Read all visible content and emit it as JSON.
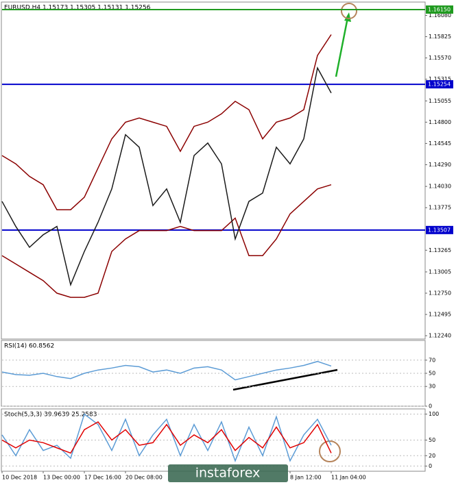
{
  "chart_data": [
    {
      "type": "line",
      "title": "EURUSD,H4  1.15173 1.15305 1.15131 1.15256",
      "ylim": [
        1.122,
        1.1624
      ],
      "yticks": [
        {
          "value": 1.1608,
          "label": "1.16080"
        },
        {
          "value": 1.15825,
          "label": "1.15825"
        },
        {
          "value": 1.1557,
          "label": "1.15570"
        },
        {
          "value": 1.15315,
          "label": "1.15315"
        },
        {
          "value": 1.15055,
          "label": "1.15055"
        },
        {
          "value": 1.148,
          "label": "1.14800"
        },
        {
          "value": 1.14545,
          "label": "1.14545"
        },
        {
          "value": 1.1429,
          "label": "1.14290"
        },
        {
          "value": 1.1403,
          "label": "1.14030"
        },
        {
          "value": 1.13775,
          "label": "1.13775"
        },
        {
          "value": 1.13265,
          "label": "1.13265"
        },
        {
          "value": 1.13005,
          "label": "1.13005"
        },
        {
          "value": 1.1275,
          "label": "1.12750"
        },
        {
          "value": 1.12495,
          "label": "1.12495"
        },
        {
          "value": 1.1224,
          "label": "1.12240"
        }
      ],
      "levels": [
        {
          "value": 1.1615,
          "label": "1.16150",
          "color": "#1f9a1f"
        },
        {
          "value": 1.15254,
          "label": "1.15254",
          "color": "#0000cc"
        },
        {
          "value": 1.13507,
          "label": "1.13507",
          "color": "#0000cc"
        }
      ],
      "series": [
        {
          "color": "#8b0000",
          "values": [
            1.144,
            1.143,
            1.1415,
            1.1405,
            1.1375,
            1.1375,
            1.139,
            1.1425,
            1.146,
            1.148,
            1.1485,
            1.148,
            1.1475,
            1.1445,
            1.1475,
            1.148,
            1.149,
            1.1505,
            1.1495,
            1.146,
            1.148,
            1.1485,
            1.1495,
            1.156,
            1.1585
          ]
        },
        {
          "color": "#8b0000",
          "values": [
            1.132,
            1.131,
            1.13,
            1.129,
            1.1275,
            1.127,
            1.127,
            1.1275,
            1.1325,
            1.134,
            1.135,
            1.135,
            1.135,
            1.1355,
            1.135,
            1.135,
            1.135,
            1.1365,
            1.132,
            1.132,
            1.134,
            1.137,
            1.1385,
            1.14,
            1.1405
          ]
        },
        {
          "color": "#1a1a1a",
          "values": [
            1.1385,
            1.1355,
            1.133,
            1.1345,
            1.1355,
            1.1285,
            1.1325,
            1.136,
            1.14,
            1.1465,
            1.145,
            1.138,
            1.14,
            1.136,
            1.144,
            1.1455,
            1.143,
            1.134,
            1.1385,
            1.1395,
            1.145,
            1.143,
            1.146,
            1.1545,
            1.1515
          ]
        }
      ]
    },
    {
      "type": "line",
      "title": "RSI(14) 60.8562",
      "ylim": [
        0,
        100
      ],
      "yticks": [
        70,
        50,
        30,
        0
      ],
      "series": [
        {
          "color": "#5b9bd5",
          "values": [
            52,
            48,
            47,
            50,
            45,
            42,
            50,
            55,
            58,
            62,
            60,
            52,
            55,
            50,
            58,
            60,
            55,
            40,
            45,
            50,
            55,
            58,
            62,
            68,
            61
          ]
        }
      ]
    },
    {
      "type": "line",
      "title": "Stoch(5,3,3) 39.9639 25.2583",
      "ylim": [
        -10,
        110
      ],
      "yticks": [
        100,
        50,
        20,
        0
      ],
      "categories": [
        "10 Dec 2018",
        null,
        null,
        "13 Dec 00:00",
        null,
        null,
        "17 Dec 16:00",
        null,
        null,
        "20 Dec 08:00",
        null,
        null,
        null,
        null,
        null,
        null,
        null,
        null,
        null,
        null,
        null,
        "8 Jan 12:00",
        null,
        null,
        "11 Jan 04:00"
      ],
      "series": [
        {
          "color": "#5b9bd5",
          "values": [
            60,
            20,
            70,
            30,
            40,
            15,
            100,
            80,
            30,
            90,
            20,
            60,
            90,
            20,
            80,
            30,
            85,
            10,
            75,
            20,
            95,
            10,
            60,
            90,
            40
          ]
        },
        {
          "color": "#e00000",
          "values": [
            50,
            35,
            50,
            45,
            35,
            25,
            70,
            85,
            50,
            70,
            40,
            45,
            80,
            40,
            60,
            45,
            70,
            30,
            55,
            35,
            75,
            35,
            45,
            80,
            25
          ]
        }
      ]
    }
  ],
  "watermark": "instaforex"
}
